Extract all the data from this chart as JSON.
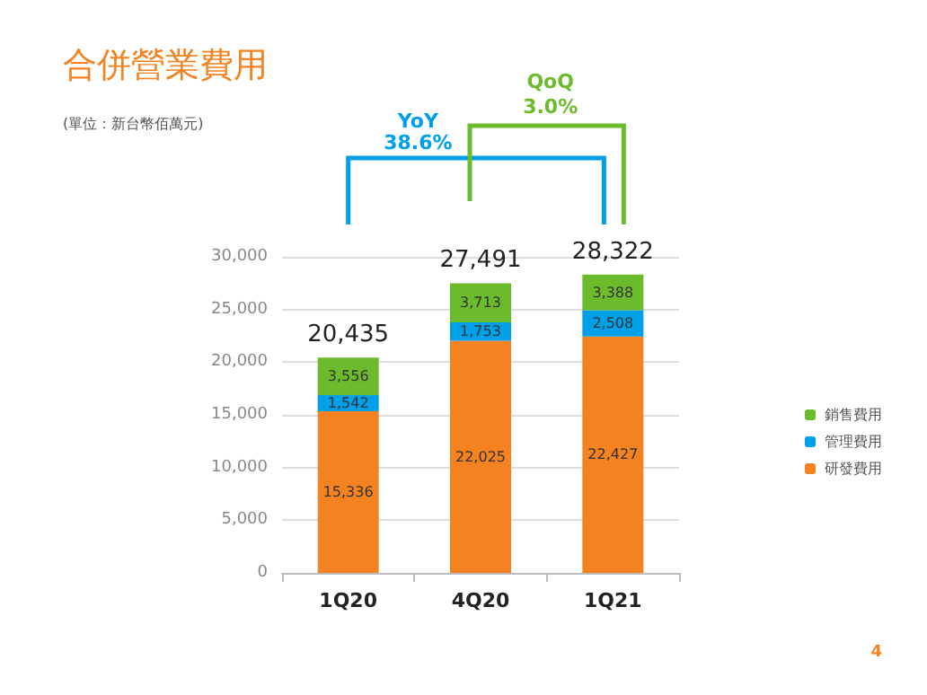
{
  "chart_data": {
    "type": "bar",
    "title": "合併營業費用",
    "subtitle": "(單位：新台幣佰萬元)",
    "categories": [
      "1Q20",
      "4Q20",
      "1Q21"
    ],
    "series": [
      {
        "name": "研發費用",
        "color": "#f58220",
        "values": [
          15336,
          22025,
          22427
        ],
        "value_labels": [
          "15,336",
          "22,025",
          "22,427"
        ]
      },
      {
        "name": "管理費用",
        "color": "#00a0e9",
        "values": [
          1542,
          1753,
          2508
        ],
        "value_labels": [
          "1,542",
          "1,753",
          "2,508"
        ]
      },
      {
        "name": "銷售費用",
        "color": "#6cbb2c",
        "values": [
          3556,
          3713,
          3388
        ],
        "value_labels": [
          "3,556",
          "3,713",
          "3,388"
        ]
      }
    ],
    "stacked": true,
    "totals": [
      "20,435",
      "27,491",
      "28,322"
    ],
    "ylim": [
      0,
      30000
    ],
    "yticks": [
      {
        "value": 0,
        "label": "0"
      },
      {
        "value": 5000,
        "label": "5,000"
      },
      {
        "value": 10000,
        "label": "10,000"
      },
      {
        "value": 15000,
        "label": "15,000"
      },
      {
        "value": 20000,
        "label": "20,000"
      },
      {
        "value": 25000,
        "label": "25,000"
      },
      {
        "value": 30000,
        "label": "30,000"
      }
    ],
    "grid": "y",
    "legend": "right",
    "annotations": [
      "YoY",
      "38.6%",
      "QoQ",
      "3.0%",
      "4"
    ]
  }
}
